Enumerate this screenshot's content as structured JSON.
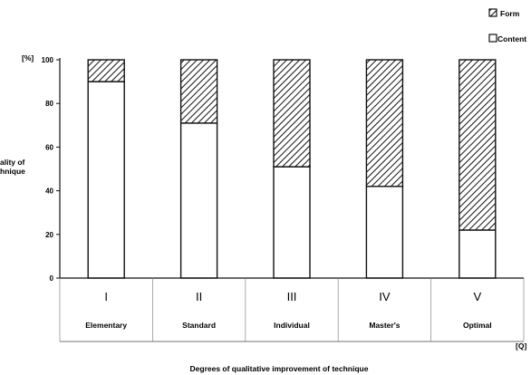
{
  "chart_data": {
    "type": "bar",
    "stacked": true,
    "categories": [
      "I",
      "II",
      "III",
      "IV",
      "V"
    ],
    "category_names": [
      "Elementary",
      "Standard",
      "Individual",
      "Master's",
      "Optimal"
    ],
    "series": [
      {
        "name": "Content",
        "values": [
          90,
          71,
          51,
          42,
          22
        ],
        "fill": "#ffffff"
      },
      {
        "name": "Form",
        "values": [
          10,
          29,
          49,
          58,
          78
        ],
        "fill": "hatch"
      }
    ],
    "yticks": [
      0,
      20,
      40,
      60,
      80,
      100
    ],
    "ylim": [
      0,
      100
    ],
    "y_unit": "[%]",
    "x_unit": "[Q]",
    "ylabel_lines": [
      "ality of",
      "hnique"
    ],
    "xlabel": "Degrees of qualitative improvement of technique",
    "legend_position": "top-right",
    "grid": false
  },
  "colors": {
    "ink": "#111111",
    "background": "#ffffff"
  }
}
